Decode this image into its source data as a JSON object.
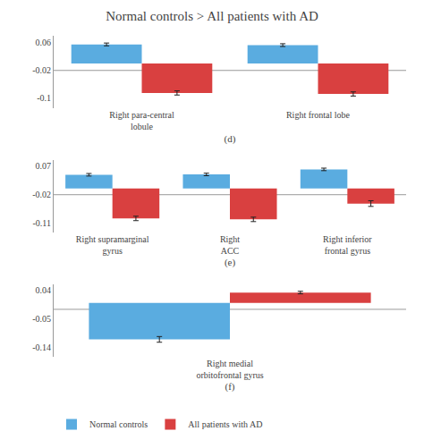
{
  "title": "Normal controls > All patients with AD",
  "chart_data": [
    {
      "type": "bar",
      "categories": [
        "Right para-central\nlobule",
        "Right frontal lobe"
      ],
      "series": [
        {
          "name": "Normal controls",
          "color": "#5aace0",
          "values": [
            0.055,
            0.053
          ],
          "errors": [
            0.004,
            0.004
          ]
        },
        {
          "name": "All patients with AD",
          "color": "#d94040",
          "values": [
            -0.085,
            -0.088
          ],
          "errors": [
            0.006,
            0.006
          ]
        }
      ],
      "ylim": [
        -0.13,
        0.08
      ],
      "yticks": [
        0.06,
        -0.02,
        -0.1
      ],
      "reference_line": -0.02,
      "xlabel": "(d)",
      "grid": false
    },
    {
      "type": "bar",
      "categories": [
        "Right supramarginal\ngyrus",
        "Right\nACC",
        "Right inferior\nfrontal gyrus"
      ],
      "series": [
        {
          "name": "Normal controls",
          "color": "#5aace0",
          "values": [
            0.043,
            0.044,
            0.06
          ],
          "errors": [
            0.004,
            0.004,
            0.004
          ]
        },
        {
          "name": "All patients with AD",
          "color": "#d94040",
          "values": [
            -0.095,
            -0.098,
            -0.048
          ],
          "errors": [
            0.007,
            0.007,
            0.009
          ]
        }
      ],
      "ylim": [
        -0.14,
        0.09
      ],
      "yticks": [
        0.07,
        -0.02,
        -0.11
      ],
      "reference_line": -0.02,
      "xlabel": "(e)",
      "grid": false
    },
    {
      "type": "bar",
      "categories": [
        "Right medial\norbitofrontal gyrus"
      ],
      "series": [
        {
          "name": "Normal controls",
          "color": "#5aace0",
          "values": [
            -0.115
          ],
          "errors": [
            0.009
          ]
        },
        {
          "name": "All patients with AD",
          "color": "#d94040",
          "values": [
            0.033
          ],
          "errors": [
            0.004
          ]
        }
      ],
      "ylim": [
        -0.17,
        0.06
      ],
      "yticks": [
        0.04,
        -0.05,
        -0.14
      ],
      "reference_line": -0.02,
      "xlabel": "(f)",
      "grid": false,
      "legend": "bottom"
    }
  ]
}
